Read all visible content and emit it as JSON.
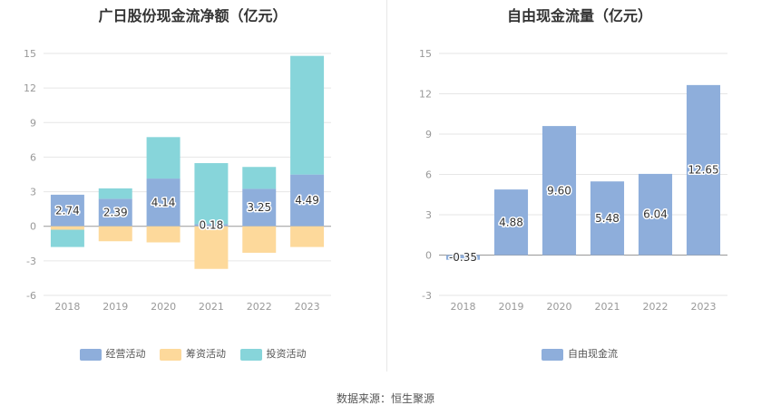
{
  "colors": {
    "operating": "#8eaedb",
    "financing": "#fdd99b",
    "investing": "#87d5da",
    "free_cash_flow": "#8eaedb",
    "grid": "#e6e6e6",
    "axis": "#999999"
  },
  "footer": "数据来源：恒生聚源",
  "chart_data": [
    {
      "type": "bar",
      "stacked": true,
      "title": "广日股份现金流净额（亿元）",
      "categories": [
        "2018",
        "2019",
        "2020",
        "2021",
        "2022",
        "2023"
      ],
      "yticks": [
        15,
        12,
        9,
        6,
        3,
        0,
        -3,
        -6
      ],
      "ylim": [
        -6,
        15
      ],
      "grid": true,
      "legend_position": "bottom",
      "series": [
        {
          "name": "经营活动",
          "key": "operating",
          "values": [
            2.74,
            2.39,
            4.14,
            0.18,
            3.25,
            4.49
          ],
          "data_labels": [
            "2.74",
            "2.39",
            "4.14",
            "0.18",
            "3.25",
            "4.49"
          ]
        },
        {
          "name": "筹资活动",
          "key": "financing",
          "values": [
            -0.3,
            -1.3,
            -1.4,
            -3.7,
            -2.3,
            -1.8
          ]
        },
        {
          "name": "投资活动",
          "key": "investing",
          "values": [
            -1.5,
            0.9,
            3.6,
            5.3,
            1.9,
            10.3
          ]
        }
      ]
    },
    {
      "type": "bar",
      "title": "自由现金流量（亿元）",
      "categories": [
        "2018",
        "2019",
        "2020",
        "2021",
        "2022",
        "2023"
      ],
      "yticks": [
        15,
        12,
        9,
        6,
        3,
        0,
        -3
      ],
      "ylim": [
        -3,
        15
      ],
      "grid": true,
      "legend_position": "bottom",
      "series": [
        {
          "name": "自由现金流",
          "key": "free_cash_flow",
          "values": [
            -0.35,
            4.88,
            9.6,
            5.48,
            6.04,
            12.65
          ],
          "data_labels": [
            "-0.35",
            "4.88",
            "9.60",
            "5.48",
            "6.04",
            "12.65"
          ]
        }
      ]
    }
  ]
}
